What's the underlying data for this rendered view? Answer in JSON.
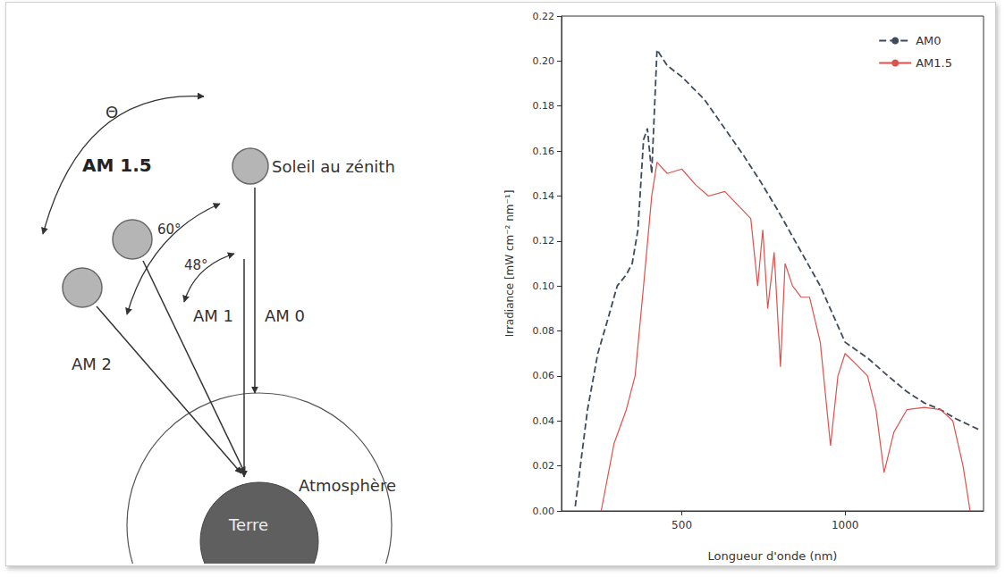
{
  "diagram": {
    "theta": "Θ",
    "sun_zenith": "Soleil au zénith",
    "am15": "AM 1.5",
    "am2": "AM 2",
    "am1": "AM 1",
    "am0": "AM 0",
    "angle_am2": "60°",
    "angle_am15": "48°",
    "atmosphere": "Atmosphère",
    "earth": "Terre"
  },
  "chart_data": {
    "type": "line",
    "x_label": "Longueur d'onde (nm)",
    "y_label": "Irradiance [mW cm⁻² nm⁻¹]",
    "log": "x",
    "grid": false,
    "legend": "upper right",
    "xlim": [
      300,
      1800
    ],
    "xticks": [
      500,
      1000
    ],
    "ylim": [
      0,
      0.22
    ],
    "yticks": [
      {
        "value": 0,
        "label": "0.00"
      },
      0.02,
      0.04,
      0.06,
      0.08,
      {
        "value": 0.1,
        "label": "0.10"
      },
      0.12,
      0.14,
      0.16,
      0.18,
      {
        "value": 0.2,
        "label": "0.20"
      },
      0.22
    ],
    "series": [
      {
        "name": "AM0",
        "color": "#3e4b5c",
        "line_style": "dashed",
        "x": [
          318,
          335,
          350,
          365,
          380,
          395,
          405,
          415,
          425,
          432,
          440,
          450,
          470,
          500,
          550,
          600,
          650,
          700,
          750,
          800,
          900,
          1000,
          1100,
          1200,
          1300,
          1400,
          1500,
          1600,
          1770
        ],
        "values": [
          0.002,
          0.045,
          0.07,
          0.085,
          0.1,
          0.105,
          0.11,
          0.125,
          0.165,
          0.17,
          0.15,
          0.205,
          0.198,
          0.193,
          0.183,
          0.17,
          0.158,
          0.146,
          0.134,
          0.122,
          0.1,
          0.075,
          0.068,
          0.06,
          0.053,
          0.048,
          0.045,
          0.041,
          0.036
        ]
      },
      {
        "name": "AM1.5",
        "color": "#d9534f",
        "line_style": "solid",
        "x": [
          355,
          375,
          395,
          410,
          425,
          440,
          450,
          470,
          500,
          530,
          560,
          600,
          640,
          670,
          690,
          705,
          720,
          740,
          760,
          775,
          800,
          830,
          860,
          900,
          940,
          970,
          1000,
          1050,
          1100,
          1140,
          1180,
          1230,
          1300,
          1400,
          1500,
          1580,
          1650,
          1700
        ],
        "values": [
          0.0,
          0.03,
          0.045,
          0.06,
          0.1,
          0.14,
          0.155,
          0.15,
          0.152,
          0.145,
          0.14,
          0.142,
          0.135,
          0.13,
          0.1,
          0.125,
          0.09,
          0.115,
          0.064,
          0.11,
          0.1,
          0.095,
          0.095,
          0.075,
          0.029,
          0.06,
          0.07,
          0.065,
          0.06,
          0.045,
          0.017,
          0.035,
          0.045,
          0.046,
          0.045,
          0.04,
          0.02,
          0.0
        ]
      }
    ]
  }
}
